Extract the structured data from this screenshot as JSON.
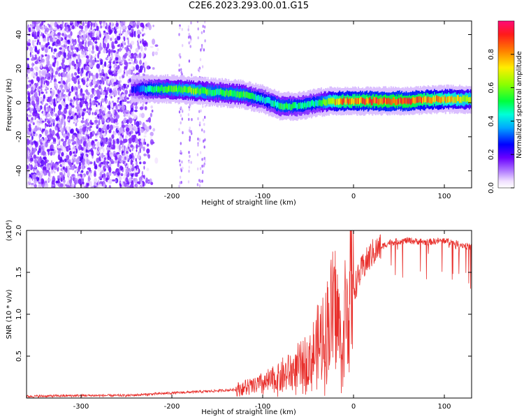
{
  "title": "C2E6.2023.293.00.01.G15",
  "chart_data": [
    {
      "type": "heatmap",
      "xlabel": "Height of straight line (km)",
      "ylabel": "Frequency (Hz)",
      "xlim": [
        -360,
        130
      ],
      "ylim": [
        -50,
        48
      ],
      "xticks": [
        -300,
        -200,
        -100,
        0,
        100
      ],
      "yticks": [
        -40,
        -20,
        0,
        20,
        40
      ],
      "colorbar": {
        "label": "Normalized spectral amplitude",
        "range": [
          0.0,
          1.0
        ],
        "ticks": [
          "0.0",
          "0.2",
          "0.4",
          "0.6",
          "0.8"
        ]
      },
      "ridge": [
        {
          "x": -245,
          "y": 8,
          "amp": 0.25
        },
        {
          "x": -225,
          "y": 8,
          "amp": 0.5
        },
        {
          "x": -200,
          "y": 8,
          "amp": 0.6
        },
        {
          "x": -175,
          "y": 7,
          "amp": 0.65
        },
        {
          "x": -150,
          "y": 6,
          "amp": 0.55
        },
        {
          "x": -125,
          "y": 5,
          "amp": 0.6
        },
        {
          "x": -100,
          "y": 2,
          "amp": 0.45
        },
        {
          "x": -80,
          "y": -2,
          "amp": 0.55
        },
        {
          "x": -60,
          "y": -2,
          "amp": 0.5
        },
        {
          "x": -40,
          "y": 0,
          "amp": 0.5
        },
        {
          "x": -25,
          "y": 1,
          "amp": 0.75
        },
        {
          "x": -15,
          "y": 1,
          "amp": 0.9
        },
        {
          "x": 0,
          "y": 1,
          "amp": 0.9
        },
        {
          "x": 30,
          "y": 1,
          "amp": 0.95
        },
        {
          "x": 60,
          "y": 1,
          "amp": 0.95
        },
        {
          "x": 90,
          "y": 2,
          "amp": 0.85
        },
        {
          "x": 130,
          "y": 2,
          "amp": 0.7
        }
      ]
    },
    {
      "type": "line",
      "xlabel": "Height of straight line (km)",
      "ylabel": "SNR (10 * v/v)",
      "yscale_label": "(x10⁴)",
      "xlim": [
        -360,
        130
      ],
      "ylim": [
        0,
        2.0
      ],
      "xticks": [
        -300,
        -200,
        -100,
        0,
        100
      ],
      "yticks": [
        "0.5",
        "1.0",
        "1.5",
        "2.0"
      ],
      "series_color": "#e8302c",
      "series": [
        {
          "x": [
            -360,
            -300,
            -250,
            -200,
            -160,
            -130,
            -110,
            -90,
            -75,
            -60,
            -50,
            -40,
            -30,
            -25,
            -20,
            -15,
            -12,
            -10,
            -5,
            0,
            10,
            20,
            30,
            40,
            60,
            80,
            100,
            115,
            130
          ],
          "values": [
            0.02,
            0.03,
            0.03,
            0.06,
            0.08,
            0.1,
            0.14,
            0.2,
            0.28,
            0.35,
            0.42,
            0.58,
            0.78,
            0.95,
            1.1,
            0.75,
            0.4,
            0.95,
            1.15,
            1.3,
            1.55,
            1.72,
            1.8,
            1.86,
            1.88,
            1.86,
            1.88,
            1.84,
            1.8
          ]
        }
      ]
    }
  ]
}
